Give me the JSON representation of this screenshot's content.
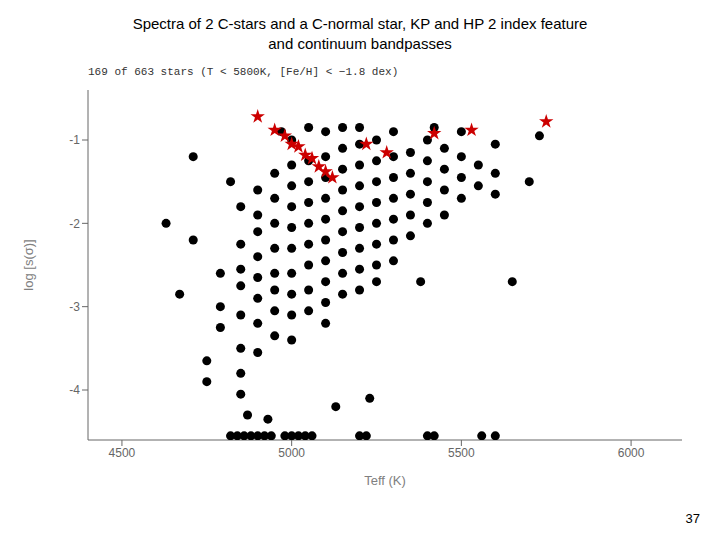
{
  "chart_data": {
    "type": "scatter",
    "title": [
      "Spectra of 2 C-stars and a C-normal star, KP and HP 2 index feature",
      "and continuum bandpasses"
    ],
    "subtitle": "169 of 663 stars (T < 5800K,  [Fe/H]   < −1.8 dex)",
    "xlabel": "Teff (K)",
    "ylabel": "log [s(σ)]",
    "xlim": [
      4400,
      6150
    ],
    "ylim": [
      -4.6,
      -0.4
    ],
    "xticks": [
      4500,
      5000,
      5500,
      6000
    ],
    "yticks": [
      -4,
      -3,
      -2,
      -1
    ],
    "grid": false,
    "annotations": [
      "37"
    ],
    "series": [
      {
        "color": "#000000",
        "marker": "circle",
        "x": [
          4630,
          4670,
          4710,
          4710,
          4750,
          4750,
          4790,
          4790,
          4790,
          4820,
          4850,
          4850,
          4850,
          4850,
          4850,
          4850,
          4850,
          4850,
          4870,
          4900,
          4900,
          4900,
          4900,
          4900,
          4900,
          4900,
          4900,
          4930,
          4950,
          4950,
          4950,
          4950,
          4950,
          4950,
          4950,
          4950,
          4970,
          5000,
          5000,
          5000,
          5000,
          5000,
          5000,
          5000,
          5000,
          5000,
          5000,
          5050,
          5050,
          5050,
          5050,
          5050,
          5050,
          5050,
          5050,
          5050,
          5100,
          5100,
          5100,
          5100,
          5100,
          5100,
          5100,
          5100,
          5100,
          5100,
          5130,
          5150,
          5150,
          5150,
          5150,
          5150,
          5150,
          5150,
          5150,
          5150,
          5200,
          5200,
          5200,
          5200,
          5200,
          5200,
          5200,
          5200,
          5200,
          5230,
          5250,
          5250,
          5250,
          5250,
          5250,
          5250,
          5250,
          5250,
          5300,
          5300,
          5300,
          5300,
          5300,
          5300,
          5300,
          5350,
          5350,
          5350,
          5350,
          5350,
          5380,
          5400,
          5400,
          5400,
          5400,
          5400,
          5420,
          5450,
          5450,
          5450,
          5450,
          5500,
          5500,
          5500,
          5500,
          5550,
          5550,
          5600,
          5600,
          5600,
          5650,
          5700,
          5730
        ],
        "y": [
          -2.0,
          -2.85,
          -1.2,
          -2.2,
          -3.65,
          -3.9,
          -2.6,
          -3.0,
          -3.25,
          -1.5,
          -1.8,
          -2.25,
          -2.55,
          -2.75,
          -3.1,
          -3.5,
          -3.8,
          -4.05,
          -4.3,
          -1.6,
          -1.9,
          -2.1,
          -2.4,
          -2.65,
          -2.9,
          -3.2,
          -3.55,
          -4.35,
          -1.4,
          -1.7,
          -2.0,
          -2.3,
          -2.6,
          -2.8,
          -3.05,
          -3.35,
          -0.9,
          -1.0,
          -1.3,
          -1.55,
          -1.8,
          -2.05,
          -2.3,
          -2.6,
          -2.85,
          -3.1,
          -3.4,
          -0.85,
          -1.25,
          -1.5,
          -1.75,
          -2.0,
          -2.25,
          -2.5,
          -2.8,
          -3.05,
          -0.9,
          -1.2,
          -1.45,
          -1.7,
          -1.95,
          -2.2,
          -2.45,
          -2.7,
          -2.95,
          -3.2,
          -4.2,
          -0.85,
          -1.1,
          -1.35,
          -1.6,
          -1.85,
          -2.1,
          -2.35,
          -2.6,
          -2.85,
          -0.85,
          -1.05,
          -1.3,
          -1.55,
          -1.8,
          -2.05,
          -2.3,
          -2.55,
          -2.8,
          -4.1,
          -1.0,
          -1.25,
          -1.5,
          -1.75,
          -2.0,
          -2.25,
          -2.5,
          -2.7,
          -0.9,
          -1.2,
          -1.45,
          -1.7,
          -1.95,
          -2.2,
          -2.45,
          -1.15,
          -1.4,
          -1.65,
          -1.9,
          -2.15,
          -2.7,
          -1.0,
          -1.25,
          -1.5,
          -1.75,
          -2.0,
          -0.85,
          -1.1,
          -1.35,
          -1.6,
          -1.9,
          -0.9,
          -1.2,
          -1.45,
          -1.7,
          -1.3,
          -1.55,
          -1.05,
          -1.4,
          -1.65,
          -2.7,
          -1.5,
          -0.95
        ]
      },
      {
        "color": "#000000",
        "marker": "circle",
        "x": [
          4820,
          4840,
          4860,
          4880,
          4900,
          4920,
          4940,
          4980,
          5000,
          5020,
          5040,
          5060,
          5200,
          5220,
          5400,
          5420,
          5560,
          5600
        ],
        "y": [
          -4.55,
          -4.55,
          -4.55,
          -4.55,
          -4.55,
          -4.55,
          -4.55,
          -4.55,
          -4.55,
          -4.55,
          -4.55,
          -4.55,
          -4.55,
          -4.55,
          -4.55,
          -4.55,
          -4.55,
          -4.55
        ]
      },
      {
        "color": "#cc0000",
        "marker": "star",
        "x": [
          4900,
          4950,
          4980,
          5000,
          5020,
          5040,
          5060,
          5080,
          5100,
          5120,
          5220,
          5280,
          5420,
          5530,
          5750
        ],
        "y": [
          -0.72,
          -0.88,
          -0.95,
          -1.05,
          -1.08,
          -1.18,
          -1.22,
          -1.32,
          -1.38,
          -1.45,
          -1.05,
          -1.15,
          -0.92,
          -0.88,
          -0.78
        ]
      }
    ]
  }
}
